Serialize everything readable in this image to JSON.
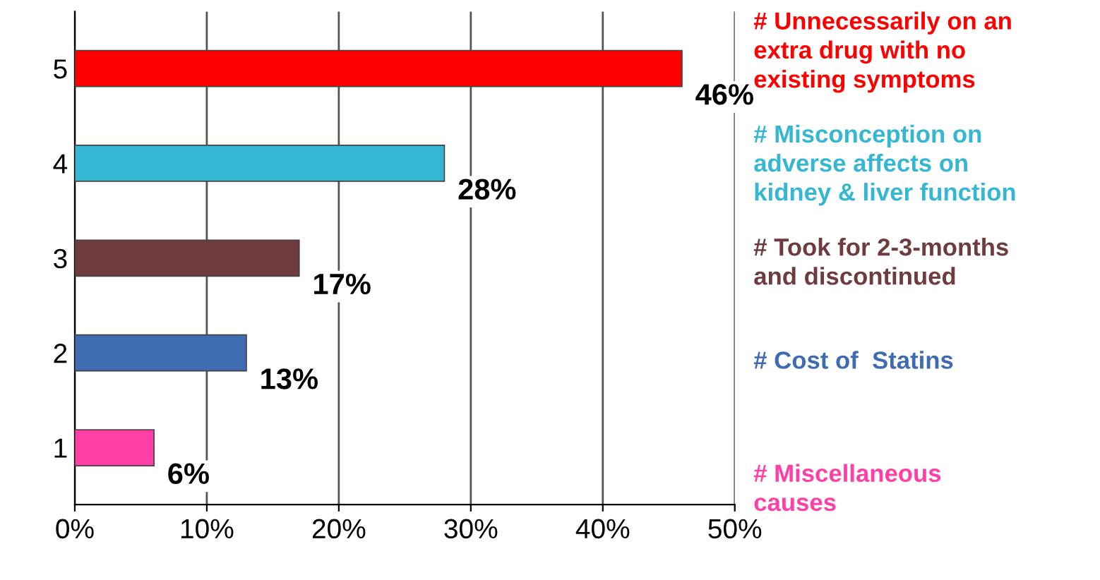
{
  "chart_data": {
    "type": "bar",
    "orientation": "horizontal",
    "categories": [
      "5",
      "4",
      "3",
      "2",
      "1"
    ],
    "values": [
      46,
      28,
      17,
      13,
      6
    ],
    "colors": [
      "#ff0000",
      "#35b6d2",
      "#6e3b3f",
      "#3f6bb3",
      "#ff3fa6"
    ],
    "value_labels": [
      "46%",
      "28%",
      "17%",
      "13%",
      "6%"
    ],
    "xlim": [
      0,
      50
    ],
    "xticks": [
      {
        "value": 0,
        "label": "0%"
      },
      {
        "value": 10,
        "label": "10%"
      },
      {
        "value": 20,
        "label": "20%"
      },
      {
        "value": 30,
        "label": "30%"
      },
      {
        "value": 40,
        "label": "40%"
      },
      {
        "value": 50,
        "label": "50%"
      }
    ],
    "grid": "x",
    "annotations": [
      "# Unnecessarily on an\nextra drug with no\nexisting symptoms",
      "# Misconception on\nadverse affects on\nkidney & liver function",
      "# Took for 2-3-months\nand discontinued",
      "# Cost of  Statins",
      "# Miscellaneous\ncauses"
    ]
  }
}
